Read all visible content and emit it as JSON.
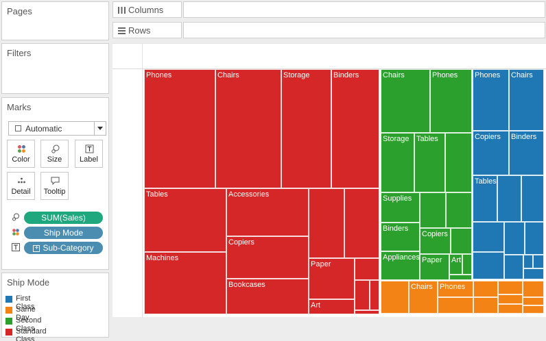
{
  "colors": {
    "first_class": "#1f77b4",
    "same_day": "#f28314",
    "second_class": "#2ca02c",
    "standard_class": "#d62728"
  },
  "pages": {
    "title": "Pages"
  },
  "filters": {
    "title": "Filters"
  },
  "shelves": {
    "columns_label": "Columns",
    "rows_label": "Rows"
  },
  "marks": {
    "title": "Marks",
    "mark_type": "Automatic",
    "buttons": {
      "color": "Color",
      "size": "Size",
      "label": "Label",
      "detail": "Detail",
      "tooltip": "Tooltip"
    },
    "pills": {
      "size": "SUM(Sales)",
      "color": "Ship Mode",
      "label": "Sub-Category"
    }
  },
  "legend": {
    "title": "Ship Mode",
    "items": [
      "First Class",
      "Same Day",
      "Second Class",
      "Standard Class"
    ]
  },
  "treemap": {
    "cells": [
      {
        "mode": "standard_class",
        "label": "Phones"
      },
      {
        "mode": "standard_class",
        "label": "Chairs"
      },
      {
        "mode": "standard_class",
        "label": "Storage"
      },
      {
        "mode": "standard_class",
        "label": "Binders"
      },
      {
        "mode": "standard_class",
        "label": "Tables"
      },
      {
        "mode": "standard_class",
        "label": "Accessories"
      },
      {
        "mode": "standard_class",
        "label": ""
      },
      {
        "mode": "standard_class",
        "label": ""
      },
      {
        "mode": "standard_class",
        "label": "Copiers"
      },
      {
        "mode": "standard_class",
        "label": "Machines"
      },
      {
        "mode": "standard_class",
        "label": "Paper"
      },
      {
        "mode": "standard_class",
        "label": ""
      },
      {
        "mode": "standard_class",
        "label": "Bookcases"
      },
      {
        "mode": "standard_class",
        "label": "Art"
      },
      {
        "mode": "standard_class",
        "label": ""
      },
      {
        "mode": "standard_class",
        "label": ""
      },
      {
        "mode": "standard_class",
        "label": ""
      },
      {
        "mode": "second_class",
        "label": "Chairs"
      },
      {
        "mode": "second_class",
        "label": "Phones"
      },
      {
        "mode": "second_class",
        "label": "Storage"
      },
      {
        "mode": "second_class",
        "label": "Tables"
      },
      {
        "mode": "second_class",
        "label": ""
      },
      {
        "mode": "second_class",
        "label": "Supplies"
      },
      {
        "mode": "second_class",
        "label": ""
      },
      {
        "mode": "second_class",
        "label": ""
      },
      {
        "mode": "second_class",
        "label": "Binders"
      },
      {
        "mode": "second_class",
        "label": "Copiers"
      },
      {
        "mode": "second_class",
        "label": ""
      },
      {
        "mode": "second_class",
        "label": "Appliances"
      },
      {
        "mode": "second_class",
        "label": "Paper"
      },
      {
        "mode": "second_class",
        "label": "Art"
      },
      {
        "mode": "second_class",
        "label": ""
      },
      {
        "mode": "second_class",
        "label": ""
      },
      {
        "mode": "first_class",
        "label": "Phones"
      },
      {
        "mode": "first_class",
        "label": "Chairs"
      },
      {
        "mode": "first_class",
        "label": "Copiers"
      },
      {
        "mode": "first_class",
        "label": "Binders"
      },
      {
        "mode": "first_class",
        "label": "Tables"
      },
      {
        "mode": "first_class",
        "label": ""
      },
      {
        "mode": "first_class",
        "label": ""
      },
      {
        "mode": "first_class",
        "label": ""
      },
      {
        "mode": "first_class",
        "label": ""
      },
      {
        "mode": "first_class",
        "label": ""
      },
      {
        "mode": "first_class",
        "label": ""
      },
      {
        "mode": "first_class",
        "label": ""
      },
      {
        "mode": "first_class",
        "label": ""
      },
      {
        "mode": "first_class",
        "label": ""
      },
      {
        "mode": "first_class",
        "label": ""
      },
      {
        "mode": "same_day",
        "label": ""
      },
      {
        "mode": "same_day",
        "label": "Chairs"
      },
      {
        "mode": "same_day",
        "label": "Phones"
      },
      {
        "mode": "same_day",
        "label": ""
      },
      {
        "mode": "same_day",
        "label": ""
      },
      {
        "mode": "same_day",
        "label": ""
      },
      {
        "mode": "same_day",
        "label": ""
      },
      {
        "mode": "same_day",
        "label": ""
      },
      {
        "mode": "same_day",
        "label": ""
      },
      {
        "mode": "same_day",
        "label": ""
      },
      {
        "mode": "same_day",
        "label": ""
      },
      {
        "mode": "same_day",
        "label": ""
      }
    ]
  }
}
